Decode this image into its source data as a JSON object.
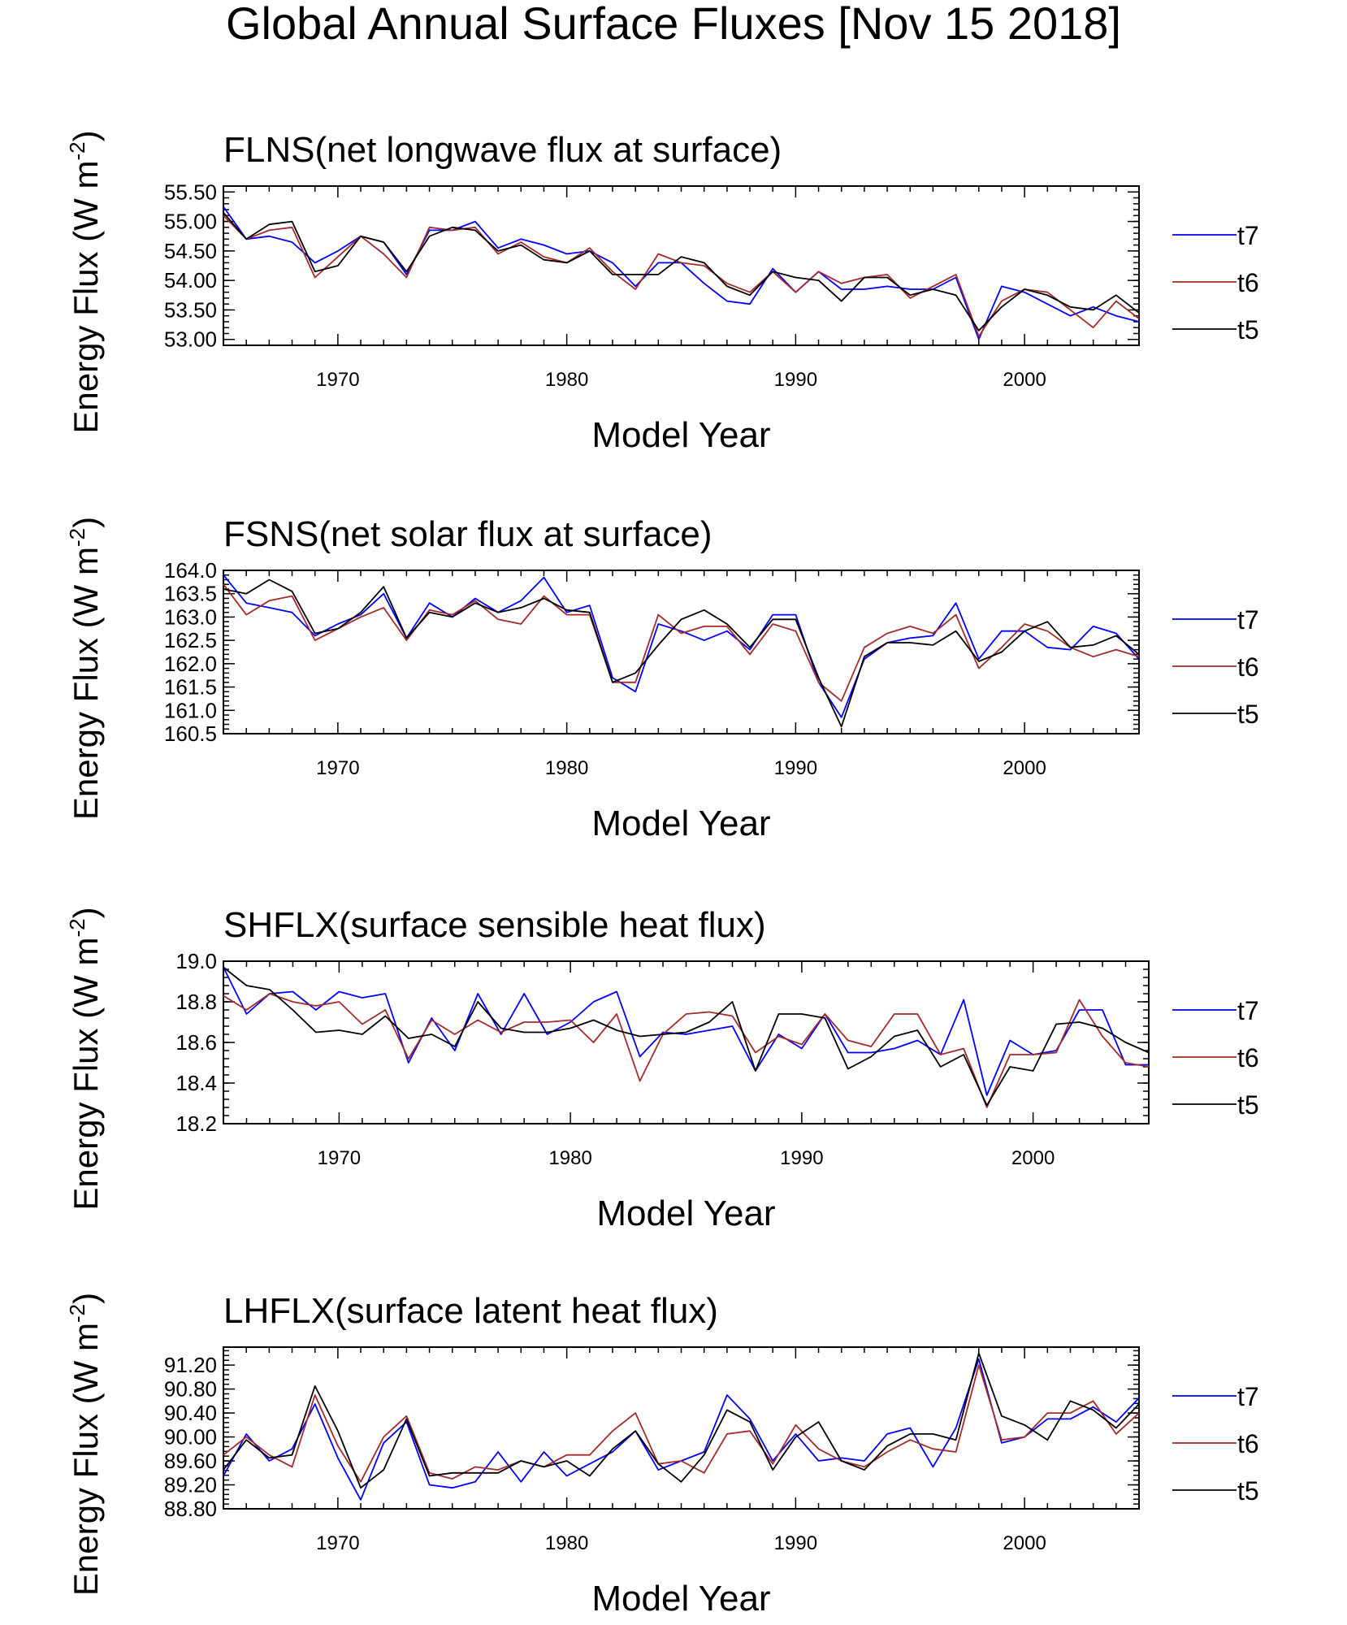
{
  "page_title": "Global Annual Surface Fluxes [Nov 15 2018]",
  "colors": {
    "t7": "#0000ff",
    "t6": "#a52a2a",
    "t5": "#000000"
  },
  "chart_data": [
    {
      "type": "line",
      "title": "FLNS(net longwave flux at surface)",
      "xlabel": "Model Year",
      "ylabel": "Energy Flux (W m-2)",
      "ylabel_main": "Energy Flux (W m",
      "ylabel_sup": "-2",
      "ylabel_end": ")",
      "xlim": [
        1965,
        2005
      ],
      "ylim": [
        52.9,
        55.6
      ],
      "xticks": [
        1970,
        1980,
        1990,
        2000
      ],
      "yticks": [
        53.0,
        53.5,
        54.0,
        54.5,
        55.0,
        55.5
      ],
      "ytick_labels": [
        "53.00",
        "53.50",
        "54.00",
        "54.50",
        "55.00",
        "55.50"
      ],
      "x": [
        1965,
        1966,
        1967,
        1968,
        1969,
        1970,
        1971,
        1972,
        1973,
        1974,
        1975,
        1976,
        1977,
        1978,
        1979,
        1980,
        1981,
        1982,
        1983,
        1984,
        1985,
        1986,
        1987,
        1988,
        1989,
        1990,
        1991,
        1992,
        1993,
        1994,
        1995,
        1996,
        1997,
        1998,
        1999,
        2000,
        2001,
        2002,
        2003,
        2004,
        2005
      ],
      "legend": [
        "t7",
        "t6",
        "t5"
      ],
      "series": [
        {
          "name": "t7",
          "values": [
            55.25,
            54.7,
            54.75,
            54.65,
            54.3,
            54.5,
            54.75,
            54.65,
            54.1,
            54.85,
            54.85,
            55.0,
            54.55,
            54.7,
            54.6,
            54.45,
            54.5,
            54.3,
            53.9,
            54.3,
            54.3,
            53.95,
            53.65,
            53.6,
            54.2,
            53.8,
            54.15,
            53.85,
            53.85,
            53.9,
            53.85,
            53.85,
            54.05,
            53.0,
            53.9,
            53.8,
            53.6,
            53.4,
            53.55,
            53.4,
            53.3
          ]
        },
        {
          "name": "t6",
          "values": [
            55.1,
            54.7,
            54.85,
            54.9,
            54.05,
            54.4,
            54.75,
            54.45,
            54.05,
            54.9,
            54.85,
            54.9,
            54.45,
            54.65,
            54.4,
            54.3,
            54.55,
            54.15,
            53.85,
            54.45,
            54.3,
            54.25,
            53.95,
            53.8,
            54.15,
            53.8,
            54.15,
            53.95,
            54.05,
            54.1,
            53.7,
            53.9,
            54.1,
            53.05,
            53.65,
            53.85,
            53.8,
            53.5,
            53.2,
            53.65,
            53.35
          ]
        },
        {
          "name": "t5",
          "values": [
            55.15,
            54.7,
            54.95,
            55.0,
            54.15,
            54.25,
            54.75,
            54.65,
            54.15,
            54.75,
            54.9,
            54.85,
            54.5,
            54.6,
            54.35,
            54.3,
            54.5,
            54.1,
            54.1,
            54.1,
            54.4,
            54.3,
            53.9,
            53.75,
            54.15,
            54.05,
            54.0,
            53.65,
            54.05,
            54.05,
            53.75,
            53.85,
            53.75,
            53.15,
            53.55,
            53.85,
            53.75,
            53.55,
            53.5,
            53.75,
            53.45
          ]
        }
      ]
    },
    {
      "type": "line",
      "title": "FSNS(net solar flux at surface)",
      "xlabel": "Model Year",
      "ylabel": "Energy Flux (W m-2)",
      "ylabel_main": "Energy Flux (W m",
      "ylabel_sup": "-2",
      "ylabel_end": ")",
      "xlim": [
        1965,
        2005
      ],
      "ylim": [
        160.5,
        164.0
      ],
      "xticks": [
        1970,
        1980,
        1990,
        2000
      ],
      "yticks": [
        160.5,
        161.0,
        161.5,
        162.0,
        162.5,
        163.0,
        163.5,
        164.0
      ],
      "ytick_labels": [
        "160.5",
        "161.0",
        "161.5",
        "162.0",
        "162.5",
        "163.0",
        "163.5",
        "164.0"
      ],
      "x": [
        1965,
        1966,
        1967,
        1968,
        1969,
        1970,
        1971,
        1972,
        1973,
        1974,
        1975,
        1976,
        1977,
        1978,
        1979,
        1980,
        1981,
        1982,
        1983,
        1984,
        1985,
        1986,
        1987,
        1988,
        1989,
        1990,
        1991,
        1992,
        1993,
        1994,
        1995,
        1996,
        1997,
        1998,
        1999,
        2000,
        2001,
        2002,
        2003,
        2004,
        2005
      ],
      "legend": [
        "t7",
        "t6",
        "t5"
      ],
      "series": [
        {
          "name": "t7",
          "values": [
            163.9,
            163.3,
            163.2,
            163.1,
            162.6,
            162.85,
            163.05,
            163.5,
            162.55,
            163.3,
            163.0,
            163.4,
            163.1,
            163.35,
            163.85,
            163.1,
            163.25,
            161.7,
            161.4,
            162.85,
            162.7,
            162.5,
            162.7,
            162.3,
            163.05,
            163.05,
            161.6,
            160.85,
            162.1,
            162.45,
            162.55,
            162.6,
            163.3,
            162.1,
            162.7,
            162.7,
            162.35,
            162.3,
            162.8,
            162.65,
            162.1
          ]
        },
        {
          "name": "t6",
          "values": [
            163.7,
            163.05,
            163.35,
            163.45,
            162.5,
            162.75,
            163.0,
            163.2,
            162.5,
            163.15,
            163.05,
            163.35,
            162.95,
            162.85,
            163.45,
            163.05,
            163.05,
            161.6,
            161.6,
            163.05,
            162.65,
            162.8,
            162.8,
            162.2,
            162.85,
            162.7,
            161.6,
            161.2,
            162.35,
            162.65,
            162.8,
            162.65,
            163.05,
            161.9,
            162.35,
            162.85,
            162.7,
            162.35,
            162.15,
            162.3,
            162.15
          ]
        },
        {
          "name": "t5",
          "values": [
            163.6,
            163.5,
            163.8,
            163.55,
            162.65,
            162.75,
            163.1,
            163.65,
            162.55,
            163.1,
            163.0,
            163.3,
            163.1,
            163.2,
            163.4,
            163.15,
            163.1,
            161.6,
            161.8,
            162.4,
            162.95,
            163.15,
            162.85,
            162.35,
            162.95,
            162.95,
            161.7,
            160.65,
            162.15,
            162.45,
            162.45,
            162.4,
            162.7,
            162.05,
            162.25,
            162.7,
            162.9,
            162.35,
            162.4,
            162.6,
            162.2
          ]
        }
      ]
    },
    {
      "type": "line",
      "title": "SHFLX(surface sensible heat flux)",
      "xlabel": "Model Year",
      "ylabel": "Energy Flux (W m-2)",
      "ylabel_main": "Energy Flux (W m",
      "ylabel_sup": "-2",
      "ylabel_end": ")",
      "xlim": [
        1965,
        2005
      ],
      "ylim": [
        18.2,
        19.0
      ],
      "xticks": [
        1970,
        1980,
        1990,
        2000
      ],
      "yticks": [
        18.2,
        18.4,
        18.6,
        18.8,
        19.0
      ],
      "ytick_labels": [
        "18.2",
        "18.4",
        "18.6",
        "18.8",
        "19.0"
      ],
      "x": [
        1965,
        1966,
        1967,
        1968,
        1969,
        1970,
        1971,
        1972,
        1973,
        1974,
        1975,
        1976,
        1977,
        1978,
        1979,
        1980,
        1981,
        1982,
        1983,
        1984,
        1985,
        1986,
        1987,
        1988,
        1989,
        1990,
        1991,
        1992,
        1993,
        1994,
        1995,
        1996,
        1997,
        1998,
        1999,
        2000,
        2001,
        2002,
        2003,
        2004,
        2005
      ],
      "legend": [
        "t7",
        "t6",
        "t5"
      ],
      "series": [
        {
          "name": "t7",
          "values": [
            18.97,
            18.74,
            18.84,
            18.85,
            18.76,
            18.85,
            18.82,
            18.84,
            18.5,
            18.72,
            18.56,
            18.84,
            18.64,
            18.84,
            18.64,
            18.7,
            18.8,
            18.85,
            18.53,
            18.65,
            18.64,
            18.66,
            18.68,
            18.46,
            18.64,
            18.57,
            18.74,
            18.55,
            18.55,
            18.57,
            18.61,
            18.54,
            18.81,
            18.34,
            18.61,
            18.54,
            18.56,
            18.76,
            18.76,
            18.49,
            18.49
          ]
        },
        {
          "name": "t6",
          "values": [
            18.83,
            18.76,
            18.84,
            18.8,
            18.78,
            18.8,
            18.69,
            18.76,
            18.52,
            18.71,
            18.64,
            18.71,
            18.65,
            18.7,
            18.7,
            18.71,
            18.6,
            18.74,
            18.41,
            18.64,
            18.74,
            18.75,
            18.73,
            18.55,
            18.63,
            18.59,
            18.74,
            18.61,
            18.58,
            18.74,
            18.74,
            18.54,
            18.57,
            18.28,
            18.54,
            18.54,
            18.55,
            18.81,
            18.63,
            18.5,
            18.48
          ]
        },
        {
          "name": "t5",
          "values": [
            18.97,
            18.88,
            18.86,
            18.76,
            18.65,
            18.66,
            18.64,
            18.73,
            18.62,
            18.64,
            18.58,
            18.8,
            18.67,
            18.65,
            18.65,
            18.67,
            18.71,
            18.66,
            18.63,
            18.64,
            18.65,
            18.7,
            18.8,
            18.46,
            18.74,
            18.74,
            18.72,
            18.47,
            18.53,
            18.63,
            18.66,
            18.48,
            18.54,
            18.29,
            18.48,
            18.46,
            18.69,
            18.7,
            18.67,
            18.6,
            18.55
          ]
        }
      ]
    },
    {
      "type": "line",
      "title": "LHFLX(surface latent heat flux)",
      "xlabel": "Model Year",
      "ylabel": "Energy Flux (W m-2)",
      "ylabel_main": "Energy Flux (W m",
      "ylabel_sup": "-2",
      "ylabel_end": ")",
      "xlim": [
        1965,
        2005
      ],
      "ylim": [
        88.8,
        91.5
      ],
      "xticks": [
        1970,
        1980,
        1990,
        2000
      ],
      "yticks": [
        88.8,
        89.2,
        89.6,
        90.0,
        90.4,
        90.8,
        91.2
      ],
      "ytick_labels": [
        "88.80",
        "89.20",
        "89.60",
        "90.00",
        "90.40",
        "90.80",
        "91.20"
      ],
      "x": [
        1965,
        1966,
        1967,
        1968,
        1969,
        1970,
        1971,
        1972,
        1973,
        1974,
        1975,
        1976,
        1977,
        1978,
        1979,
        1980,
        1981,
        1982,
        1983,
        1984,
        1985,
        1986,
        1987,
        1988,
        1989,
        1990,
        1991,
        1992,
        1993,
        1994,
        1995,
        1996,
        1997,
        1998,
        1999,
        2000,
        2001,
        2002,
        2003,
        2004,
        2005
      ],
      "legend": [
        "t7",
        "t6",
        "t5"
      ],
      "series": [
        {
          "name": "t7",
          "values": [
            89.35,
            90.05,
            89.6,
            89.8,
            90.55,
            89.65,
            88.95,
            89.9,
            90.25,
            89.2,
            89.15,
            89.25,
            89.75,
            89.25,
            89.75,
            89.35,
            89.55,
            89.75,
            90.1,
            89.45,
            89.6,
            89.75,
            90.7,
            90.3,
            89.6,
            90.05,
            89.6,
            89.65,
            89.6,
            90.05,
            90.15,
            89.5,
            90.15,
            91.3,
            89.9,
            90.0,
            90.3,
            90.3,
            90.5,
            90.25,
            90.65
          ]
        },
        {
          "name": "t6",
          "values": [
            89.7,
            90.0,
            89.7,
            89.5,
            90.7,
            89.85,
            89.25,
            90.0,
            90.35,
            89.4,
            89.3,
            89.5,
            89.45,
            89.6,
            89.5,
            89.7,
            89.7,
            90.1,
            90.4,
            89.55,
            89.6,
            89.4,
            90.05,
            90.1,
            89.55,
            90.2,
            89.8,
            89.6,
            89.5,
            89.75,
            89.95,
            89.8,
            89.75,
            91.2,
            89.95,
            90.0,
            90.4,
            90.4,
            90.6,
            90.05,
            90.4
          ]
        },
        {
          "name": "t5",
          "values": [
            89.45,
            89.95,
            89.65,
            89.7,
            90.85,
            90.1,
            89.15,
            89.45,
            90.3,
            89.35,
            89.4,
            89.4,
            89.4,
            89.6,
            89.5,
            89.6,
            89.35,
            89.8,
            90.1,
            89.55,
            89.25,
            89.7,
            90.45,
            90.25,
            89.45,
            90.0,
            90.25,
            89.6,
            89.45,
            89.85,
            90.05,
            90.05,
            89.95,
            91.4,
            90.35,
            90.2,
            89.95,
            90.6,
            90.45,
            90.15,
            90.55
          ]
        }
      ]
    }
  ]
}
